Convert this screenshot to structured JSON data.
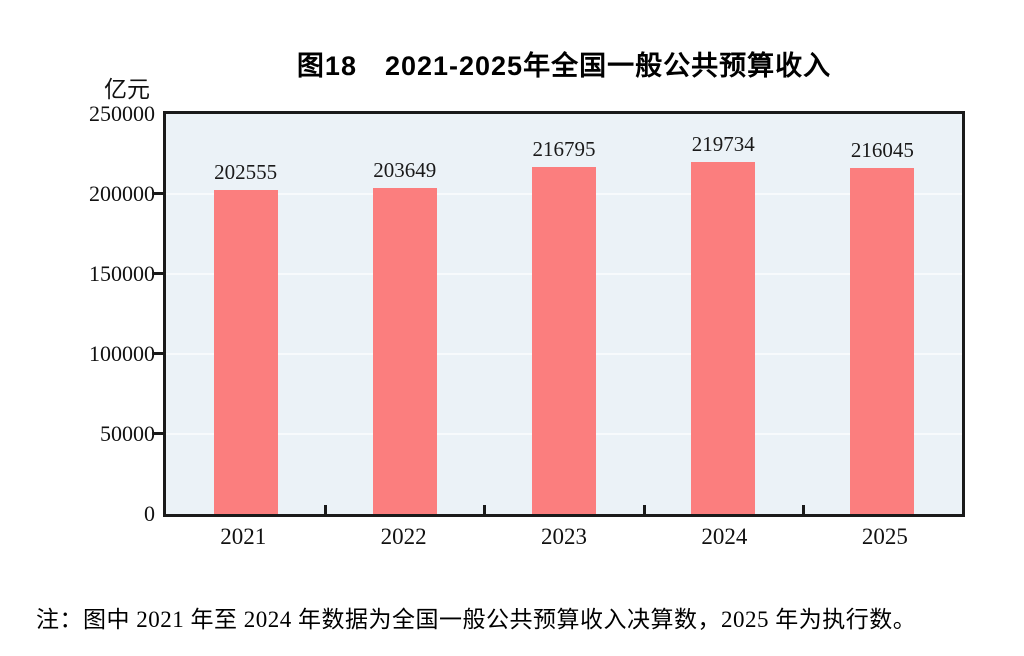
{
  "chart": {
    "unit_label": "亿元",
    "note": "注：图中 2021 年至 2024 年数据为全国一般公共预算收入决算数，2025 年为执行数。",
    "colors": {
      "bar": "#FB7E7E",
      "plot_bg": "#EBF2F7",
      "grid": "#F7FAFC",
      "axis": "#1A1A1A"
    }
  },
  "chart_data": {
    "type": "bar",
    "title": "图18　2021-2025年全国一般公共预算收入",
    "categories": [
      "2021",
      "2022",
      "2023",
      "2024",
      "2025"
    ],
    "values": [
      202555,
      203649,
      216795,
      219734,
      216045
    ],
    "xlabel": "",
    "ylabel": "亿元",
    "ylim": [
      0,
      250000
    ],
    "yticks": [
      0,
      50000,
      100000,
      150000,
      200000,
      250000
    ],
    "yticks_display": [
      "250000",
      "200000",
      "150000",
      "100000",
      "50000",
      "0"
    ],
    "grid": "horizontal",
    "legend": "none",
    "data_labels": "above-bars"
  }
}
